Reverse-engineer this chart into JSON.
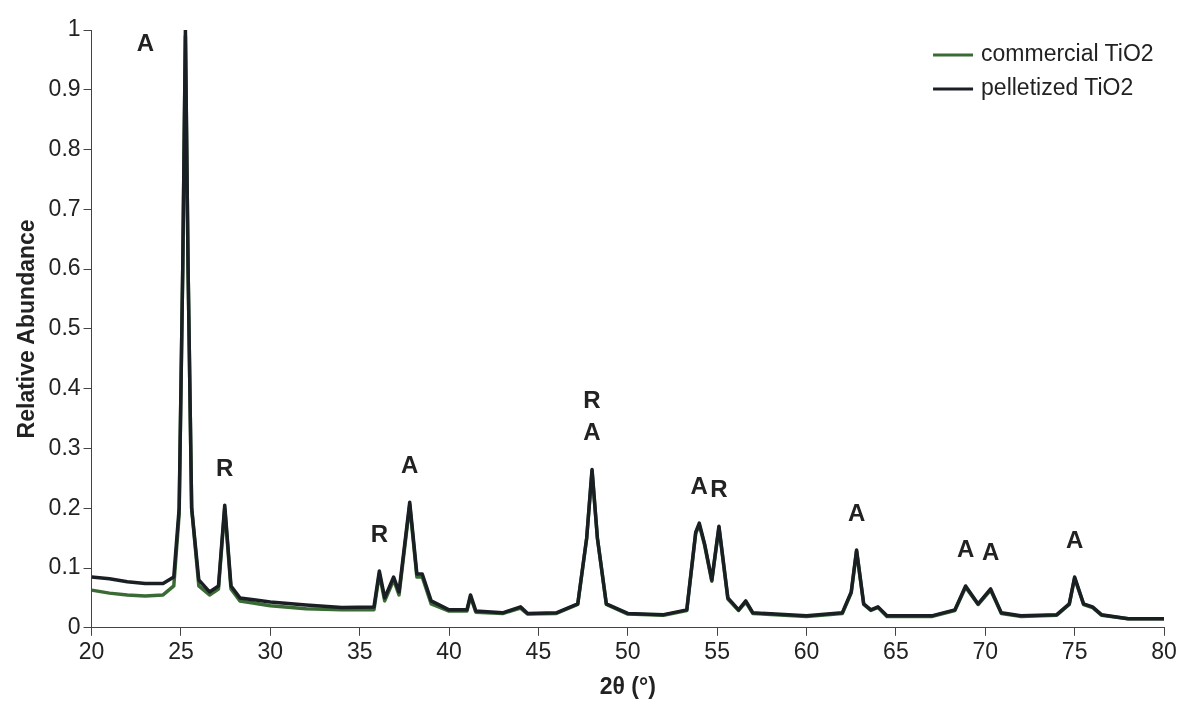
{
  "chart_data": {
    "type": "line",
    "xlabel": "2θ (°)",
    "ylabel": "Relative Abundance",
    "xlim": [
      20,
      80
    ],
    "xticks": [
      20,
      25,
      30,
      35,
      40,
      45,
      50,
      55,
      60,
      65,
      70,
      75,
      80
    ],
    "ylim": [
      0,
      1
    ],
    "yticks": [
      0,
      0.1,
      0.2,
      0.3,
      0.4,
      0.5,
      0.6,
      0.7,
      0.8,
      0.9,
      1
    ],
    "grid": false,
    "legend": "top right",
    "marker": "none",
    "line_style": "solid",
    "x": [
      20,
      21,
      22,
      23,
      24,
      24.6,
      24.9,
      25.1,
      25.25,
      25.4,
      25.6,
      26,
      26.6,
      27.1,
      27.45,
      27.8,
      28.3,
      30,
      32,
      34,
      35.8,
      36.1,
      36.4,
      36.9,
      37.2,
      37.8,
      38.2,
      38.5,
      39,
      40,
      41,
      41.2,
      41.5,
      43,
      44,
      44.4,
      46,
      47.2,
      47.7,
      48,
      48.3,
      48.8,
      50,
      52,
      53.3,
      53.8,
      54,
      54.3,
      54.7,
      55.1,
      55.6,
      56.2,
      56.6,
      57,
      60,
      62,
      62.5,
      62.8,
      63.2,
      63.6,
      64,
      64.5,
      67,
      68.3,
      68.9,
      69.6,
      70.3,
      70.9,
      72,
      74,
      74.7,
      75,
      75.5,
      76,
      76.5,
      78,
      80
    ],
    "series": [
      {
        "name": "commercial TiO2",
        "color": "#3a6b35",
        "values": [
          0.063,
          0.058,
          0.055,
          0.053,
          0.055,
          0.07,
          0.19,
          0.6,
          0.99,
          0.6,
          0.2,
          0.07,
          0.055,
          0.065,
          0.2,
          0.065,
          0.045,
          0.037,
          0.032,
          0.03,
          0.03,
          0.09,
          0.045,
          0.08,
          0.055,
          0.205,
          0.085,
          0.085,
          0.04,
          0.028,
          0.028,
          0.052,
          0.026,
          0.024,
          0.033,
          0.023,
          0.024,
          0.039,
          0.15,
          0.262,
          0.15,
          0.039,
          0.023,
          0.021,
          0.029,
          0.158,
          0.172,
          0.138,
          0.078,
          0.168,
          0.048,
          0.029,
          0.043,
          0.024,
          0.019,
          0.024,
          0.058,
          0.128,
          0.039,
          0.029,
          0.034,
          0.019,
          0.019,
          0.029,
          0.068,
          0.039,
          0.063,
          0.024,
          0.019,
          0.021,
          0.039,
          0.083,
          0.039,
          0.034,
          0.021,
          0.015,
          0.015
        ]
      },
      {
        "name": "pelletized TiO2",
        "color": "#1a1f24",
        "values": [
          0.085,
          0.082,
          0.077,
          0.074,
          0.074,
          0.085,
          0.2,
          0.6,
          1,
          0.6,
          0.2,
          0.08,
          0.06,
          0.07,
          0.205,
          0.07,
          0.05,
          0.043,
          0.038,
          0.034,
          0.035,
          0.095,
          0.05,
          0.085,
          0.06,
          0.21,
          0.09,
          0.09,
          0.045,
          0.03,
          0.03,
          0.055,
          0.028,
          0.025,
          0.035,
          0.024,
          0.025,
          0.04,
          0.15,
          0.265,
          0.15,
          0.04,
          0.024,
          0.022,
          0.03,
          0.16,
          0.175,
          0.14,
          0.08,
          0.17,
          0.05,
          0.03,
          0.045,
          0.025,
          0.02,
          0.025,
          0.06,
          0.13,
          0.04,
          0.03,
          0.035,
          0.02,
          0.02,
          0.03,
          0.07,
          0.04,
          0.065,
          0.025,
          0.02,
          0.022,
          0.04,
          0.085,
          0.04,
          0.035,
          0.022,
          0.015,
          0.015
        ]
      }
    ],
    "annotations": [
      {
        "text": "A",
        "x": 25.25,
        "y": 1
      },
      {
        "text": "R",
        "x": 27.45,
        "y": 0.205
      },
      {
        "text": "R",
        "x": 36.1,
        "y": 0.095
      },
      {
        "text": "A",
        "x": 37.8,
        "y": 0.21
      },
      {
        "text": "R",
        "x": 48,
        "y": 0.265
      },
      {
        "text": "A",
        "x": 48,
        "y": 0.265
      },
      {
        "text": "A",
        "x": 54,
        "y": 0.175
      },
      {
        "text": "R",
        "x": 55.1,
        "y": 0.17
      },
      {
        "text": "A",
        "x": 62.8,
        "y": 0.13
      },
      {
        "text": "A",
        "x": 68.9,
        "y": 0.07
      },
      {
        "text": "A",
        "x": 70.3,
        "y": 0.065
      },
      {
        "text": "A",
        "x": 75,
        "y": 0.085
      }
    ]
  }
}
